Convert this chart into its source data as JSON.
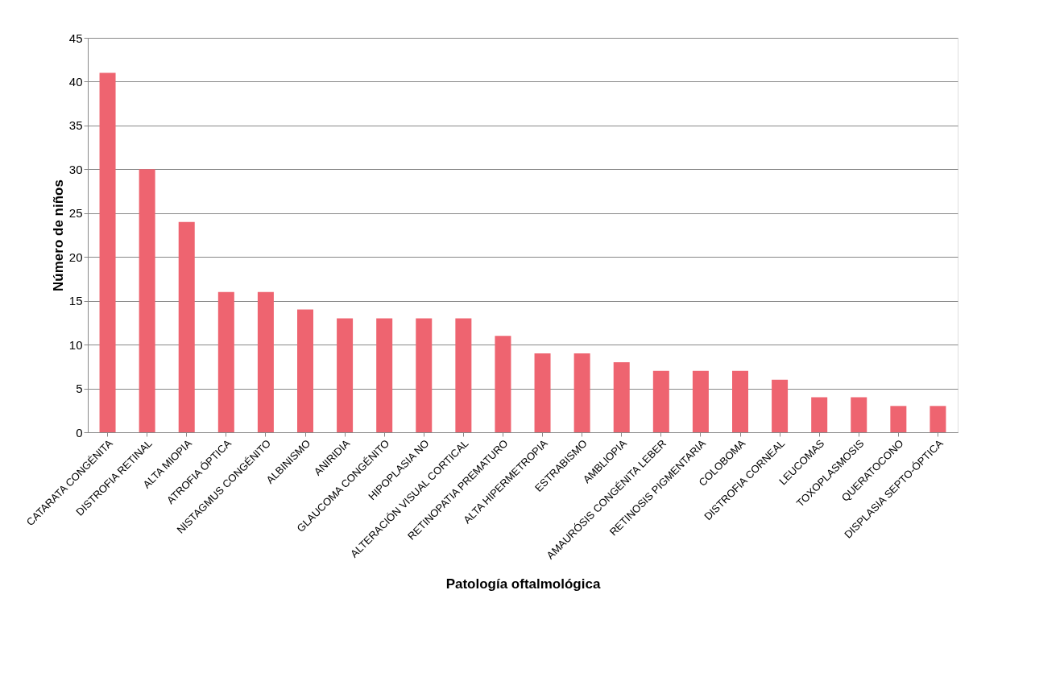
{
  "chart_data": {
    "type": "bar",
    "xlabel": "Patología oftalmológica",
    "ylabel": "Número de niños",
    "categories": [
      "CATARATA CONGÉNITA",
      "DISTROFIA RETINAL",
      "ALTA MIOPIA",
      "ATROFIA ÓPTICA",
      "NISTAGMUS CONGÉNITO",
      "ALBINISMO",
      "ANIRIDIA",
      "GLAUCOMA CONGÉNITO",
      "HIPOPLASIA NO",
      "ALTERACIÓN VISUAL CORTICAL",
      "RETINOPATIA PREMATURO",
      "ALTA HIPERMETROPIA",
      "ESTRABISMO",
      "AMBLIOPIA",
      "AMAURÓSIS CONGÉNITA LEBER",
      "RETINOSIS PIGMENTARIA",
      "COLOBOMA",
      "DISTROFIA CORNEAL",
      "LEUCOMAS",
      "TOXOPLASMOSIS",
      "QUERATOCONO",
      "DISPLASIA SEPTO-ÓPTICA"
    ],
    "values": [
      41,
      30,
      24,
      16,
      16,
      14,
      13,
      13,
      13,
      13,
      11,
      9,
      9,
      8,
      7,
      7,
      7,
      6,
      4,
      4,
      3,
      3
    ],
    "color": "#ee6470",
    "ylim": [
      0,
      45
    ],
    "yticks": [
      0,
      5,
      10,
      15,
      20,
      25,
      30,
      35,
      40,
      45
    ],
    "grid": "y"
  }
}
